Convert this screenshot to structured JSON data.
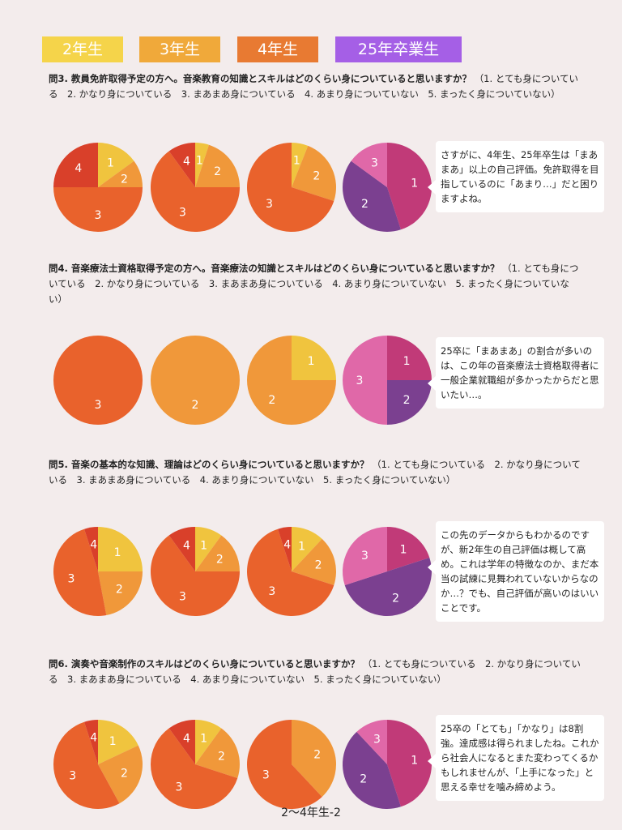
{
  "legend": [
    {
      "label": "2年生",
      "color": "#f5d44a"
    },
    {
      "label": "3年生",
      "color": "#f0a93a"
    },
    {
      "label": "4年生",
      "color": "#e87a32"
    },
    {
      "label": "25年卒業生",
      "color": "#a55fe6"
    }
  ],
  "colors": {
    "1_yellow": "#f0c43e",
    "2_orange": "#f0983a",
    "3_deep_orange": "#e9622c",
    "4_red": "#d9402a",
    "grad_1": "#c13a78",
    "grad_2": "#7b4090",
    "grad_3": "#e068a8"
  },
  "sections": [
    {
      "question_title": "問3. 教員免許取得予定の方へ。音楽教育の知識とスキルはどのくらい身についていると思いますか？",
      "question_options": "（1. とても身についている　2. かなり身についている　3. まあまあ身についている　4. あまり身についていない　5. まったく身についていない）",
      "comment": "さすがに、4年生、25年卒生は「まあまあ」以上の自己評価。免許取得を目指しているのに「あまり…」だと困りますよね。"
    },
    {
      "question_title": "問4. 音楽療法士資格取得予定の方へ。音楽療法の知識とスキルはどのくらい身についていると思いますか？",
      "question_options": "（1. とても身についている　2. かなり身についている　3. まあまあ身についている　4. あまり身についていない　5. まったく身についていない）",
      "comment": "25卒に「まあまあ」の割合が多いのは、この年の音楽療法士資格取得者に一般企業就職組が多かったからだと思いたい…。"
    },
    {
      "question_title": "問5. 音楽の基本的な知識、理論はどのくらい身についていると思いますか？",
      "question_options": "（1. とても身についている　2. かなり身についている　3. まあまあ身についている　4. あまり身についていない　5. まったく身についていない）",
      "comment": "この先のデータからもわかるのですが、新2年生の自己評価は概して高め。これは学年の特徴なのか、まだ本当の試練に見舞われていないからなのか…？でも、自己評価が高いのはいいことです。"
    },
    {
      "question_title": "問6. 演奏や音楽制作のスキルはどのくらい身についていると思いますか？",
      "question_options": "（1. とても身についている　2. かなり身についている　3. まあまあ身についている　4. あまり身についていない　5. まったく身についていない）",
      "comment": "25卒の「とても」「かなり」は8割強。達成感は得られましたね。これから社会人になるとまた変わってくるかもしれませんが、「上手になった」と思える幸せを噛み締めよう。"
    }
  ],
  "footer": "2〜4年生-2",
  "chart_data": [
    {
      "type": "pie",
      "question": "問3",
      "group": "2年生",
      "slices": [
        {
          "label": "1",
          "value": 0.15
        },
        {
          "label": "2",
          "value": 0.1
        },
        {
          "label": "3",
          "value": 0.5
        },
        {
          "label": "4",
          "value": 0.25
        }
      ]
    },
    {
      "type": "pie",
      "question": "問3",
      "group": "3年生",
      "slices": [
        {
          "label": "1",
          "value": 0.05
        },
        {
          "label": "2",
          "value": 0.2
        },
        {
          "label": "3",
          "value": 0.65
        },
        {
          "label": "4",
          "value": 0.1
        }
      ]
    },
    {
      "type": "pie",
      "question": "問3",
      "group": "4年生",
      "slices": [
        {
          "label": "1",
          "value": 0.06
        },
        {
          "label": "2",
          "value": 0.24
        },
        {
          "label": "3",
          "value": 0.7
        }
      ]
    },
    {
      "type": "pie",
      "question": "問3",
      "group": "25年卒業生",
      "slices": [
        {
          "label": "1",
          "value": 0.45
        },
        {
          "label": "2",
          "value": 0.4
        },
        {
          "label": "3",
          "value": 0.15
        }
      ]
    },
    {
      "type": "pie",
      "question": "問4",
      "group": "2年生",
      "slices": [
        {
          "label": "3",
          "value": 1.0
        }
      ]
    },
    {
      "type": "pie",
      "question": "問4",
      "group": "3年生",
      "slices": [
        {
          "label": "2",
          "value": 1.0
        }
      ]
    },
    {
      "type": "pie",
      "question": "問4",
      "group": "4年生",
      "slices": [
        {
          "label": "1",
          "value": 0.25
        },
        {
          "label": "2",
          "value": 0.75
        }
      ]
    },
    {
      "type": "pie",
      "question": "問4",
      "group": "25年卒業生",
      "slices": [
        {
          "label": "1",
          "value": 0.25
        },
        {
          "label": "2",
          "value": 0.25
        },
        {
          "label": "3",
          "value": 0.5
        }
      ]
    },
    {
      "type": "pie",
      "question": "問5",
      "group": "2年生",
      "slices": [
        {
          "label": "1",
          "value": 0.25
        },
        {
          "label": "2",
          "value": 0.22
        },
        {
          "label": "3",
          "value": 0.48
        },
        {
          "label": "4",
          "value": 0.05
        }
      ]
    },
    {
      "type": "pie",
      "question": "問5",
      "group": "3年生",
      "slices": [
        {
          "label": "1",
          "value": 0.1
        },
        {
          "label": "2",
          "value": 0.15
        },
        {
          "label": "3",
          "value": 0.65
        },
        {
          "label": "4",
          "value": 0.1
        }
      ]
    },
    {
      "type": "pie",
      "question": "問5",
      "group": "4年生",
      "slices": [
        {
          "label": "1",
          "value": 0.12
        },
        {
          "label": "2",
          "value": 0.18
        },
        {
          "label": "3",
          "value": 0.65
        },
        {
          "label": "4",
          "value": 0.05
        }
      ]
    },
    {
      "type": "pie",
      "question": "問5",
      "group": "25年卒業生",
      "slices": [
        {
          "label": "1",
          "value": 0.2
        },
        {
          "label": "2",
          "value": 0.5
        },
        {
          "label": "3",
          "value": 0.3
        }
      ]
    },
    {
      "type": "pie",
      "question": "問6",
      "group": "2年生",
      "slices": [
        {
          "label": "1",
          "value": 0.18
        },
        {
          "label": "2",
          "value": 0.24
        },
        {
          "label": "3",
          "value": 0.53
        },
        {
          "label": "4",
          "value": 0.05
        }
      ]
    },
    {
      "type": "pie",
      "question": "問6",
      "group": "3年生",
      "slices": [
        {
          "label": "1",
          "value": 0.1
        },
        {
          "label": "2",
          "value": 0.2
        },
        {
          "label": "3",
          "value": 0.6
        },
        {
          "label": "4",
          "value": 0.1
        }
      ]
    },
    {
      "type": "pie",
      "question": "問6",
      "group": "4年生",
      "slices": [
        {
          "label": "2",
          "value": 0.38
        },
        {
          "label": "3",
          "value": 0.62
        }
      ]
    },
    {
      "type": "pie",
      "question": "問6",
      "group": "25年卒業生",
      "slices": [
        {
          "label": "1",
          "value": 0.45
        },
        {
          "label": "2",
          "value": 0.43
        },
        {
          "label": "3",
          "value": 0.12
        }
      ]
    }
  ]
}
